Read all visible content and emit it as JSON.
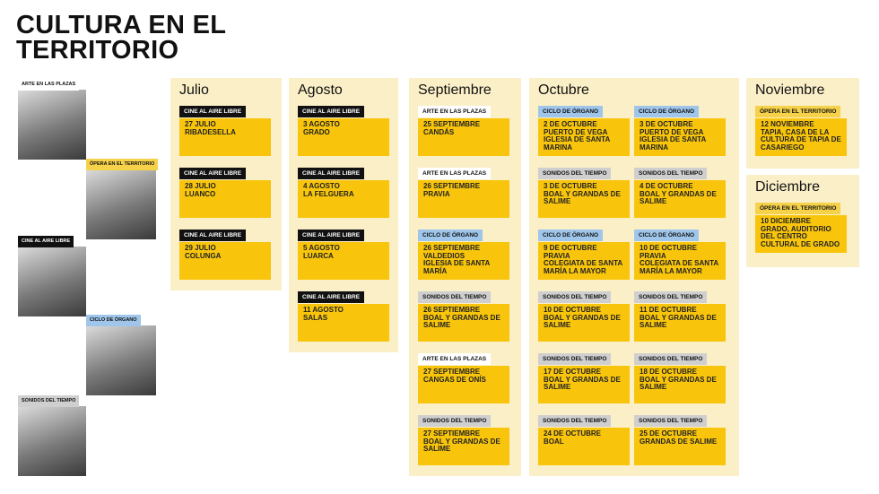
{
  "header": {
    "title_lines": [
      "CULTURA EN EL",
      "TERRITORIO"
    ]
  },
  "legend": [
    {
      "label": "ARTE EN LAS PLAZAS",
      "tag_color": "#ffffff",
      "text_color": "#111111"
    },
    {
      "label": "ÓPERA EN EL TERRITORIO",
      "tag_color": "#f6d24a",
      "text_color": "#111111"
    },
    {
      "label": "CINE AL AIRE LIBRE",
      "tag_color": "#111111",
      "text_color": "#ffffff"
    },
    {
      "label": "CICLO DE ÓRGANO",
      "tag_color": "#9fc6ea",
      "text_color": "#111111"
    },
    {
      "label": "SONIDOS DEL TIEMPO",
      "tag_color": "#cfcfcf",
      "text_color": "#111111"
    }
  ],
  "months": [
    {
      "name": "Julio",
      "events": [
        {
          "tag": "CINE AL AIRE LIBRE",
          "lines": [
            "27 JULIO",
            "RIBADESELLA"
          ]
        },
        {
          "tag": "CINE AL AIRE LIBRE",
          "lines": [
            "28 JULIO",
            "LUANCO"
          ]
        },
        {
          "tag": "CINE AL AIRE LIBRE",
          "lines": [
            "29 JULIO",
            "COLUNGA"
          ]
        }
      ]
    },
    {
      "name": "Agosto",
      "events": [
        {
          "tag": "CINE AL AIRE LIBRE",
          "lines": [
            "3 AGOSTO",
            "GRADO"
          ]
        },
        {
          "tag": "CINE AL AIRE LIBRE",
          "lines": [
            "4 AGOSTO",
            "LA FELGUERA"
          ]
        },
        {
          "tag": "CINE AL AIRE LIBRE",
          "lines": [
            "5 AGOSTO",
            "LUARCA"
          ]
        },
        {
          "tag": "CINE AL AIRE LIBRE",
          "lines": [
            "11 AGOSTO",
            "SALAS"
          ]
        }
      ]
    },
    {
      "name": "Septiembre",
      "events": [
        {
          "tag": "ARTE EN LAS PLAZAS",
          "lines": [
            "25 SEPTIEMBRE",
            "CANDÁS"
          ]
        },
        {
          "tag": "ARTE EN LAS PLAZAS",
          "lines": [
            "26 SEPTIEMBRE",
            "PRAVIA"
          ]
        },
        {
          "tag": "CICLO DE ÓRGANO",
          "lines": [
            "26 SEPTIEMBRE",
            "VALDEDIOS",
            "IGLESIA DE SANTA MARÍA"
          ]
        },
        {
          "tag": "SONIDOS DEL TIEMPO",
          "lines": [
            "26 SEPTIEMBRE",
            "BOAL Y GRANDAS DE SALIME"
          ]
        },
        {
          "tag": "ARTE EN LAS PLAZAS",
          "lines": [
            "27 SEPTIEMBRE",
            "CANGAS DE ONÍS"
          ]
        },
        {
          "tag": "SONIDOS DEL TIEMPO",
          "lines": [
            "27 SEPTIEMBRE",
            "BOAL Y GRANDAS DE SALIME"
          ]
        }
      ]
    },
    {
      "name": "Octubre",
      "events": [
        {
          "tag": "CICLO DE ÓRGANO",
          "lines": [
            "2 DE OCTUBRE",
            "PUERTO DE VEGA",
            "IGLESIA DE SANTA MARINA"
          ]
        },
        {
          "tag": "CICLO DE ÓRGANO",
          "lines": [
            "3 DE OCTUBRE",
            "PUERTO DE VEGA",
            "IGLESIA DE SANTA MARINA"
          ]
        },
        {
          "tag": "SONIDOS DEL TIEMPO",
          "lines": [
            "3 DE OCTUBRE",
            "BOAL Y GRANDAS DE SALIME"
          ]
        },
        {
          "tag": "SONIDOS DEL TIEMPO",
          "lines": [
            "4 DE OCTUBRE",
            "BOAL Y GRANDAS DE SALIME"
          ]
        },
        {
          "tag": "CICLO DE ÓRGANO",
          "lines": [
            "9 DE OCTUBRE",
            "PRAVIA",
            "COLEGIATA DE SANTA MARÍA LA MAYOR"
          ]
        },
        {
          "tag": "CICLO DE ÓRGANO",
          "lines": [
            "10 DE OCTUBRE",
            "PRAVIA",
            "COLEGIATA DE SANTA MARÍA LA MAYOR"
          ]
        },
        {
          "tag": "SONIDOS DEL TIEMPO",
          "lines": [
            "10 DE OCTUBRE",
            "BOAL Y GRANDAS DE SALIME"
          ]
        },
        {
          "tag": "SONIDOS DEL TIEMPO",
          "lines": [
            "11 DE OCTUBRE",
            "BOAL Y GRANDAS DE SALIME"
          ]
        },
        {
          "tag": "SONIDOS DEL TIEMPO",
          "lines": [
            "17 DE OCTUBRE",
            "BOAL Y GRANDAS DE SALIME"
          ]
        },
        {
          "tag": "SONIDOS DEL TIEMPO",
          "lines": [
            "18 DE OCTUBRE",
            "BOAL Y GRANDAS DE SALIME"
          ]
        },
        {
          "tag": "SONIDOS DEL TIEMPO",
          "lines": [
            "24 DE OCTUBRE",
            "BOAL"
          ]
        },
        {
          "tag": "SONIDOS DEL TIEMPO",
          "lines": [
            "25 DE OCTUBRE",
            "GRANDAS DE SALIME"
          ]
        }
      ]
    },
    {
      "name": "Noviembre",
      "events": [
        {
          "tag": "ÓPERA EN EL TERRITORIO",
          "lines": [
            "12 NOVIEMBRE",
            "TAPIA, CASA DE LA CULTURA DE TAPIA DE CASARIEGO"
          ]
        }
      ]
    },
    {
      "name": "Diciembre",
      "events": [
        {
          "tag": "ÓPERA EN EL TERRITORIO",
          "lines": [
            "10 DICIEMBRE",
            "GRADO, AUDITORIO DEL CENTRO CULTURAL DE GRADO"
          ]
        }
      ]
    }
  ]
}
